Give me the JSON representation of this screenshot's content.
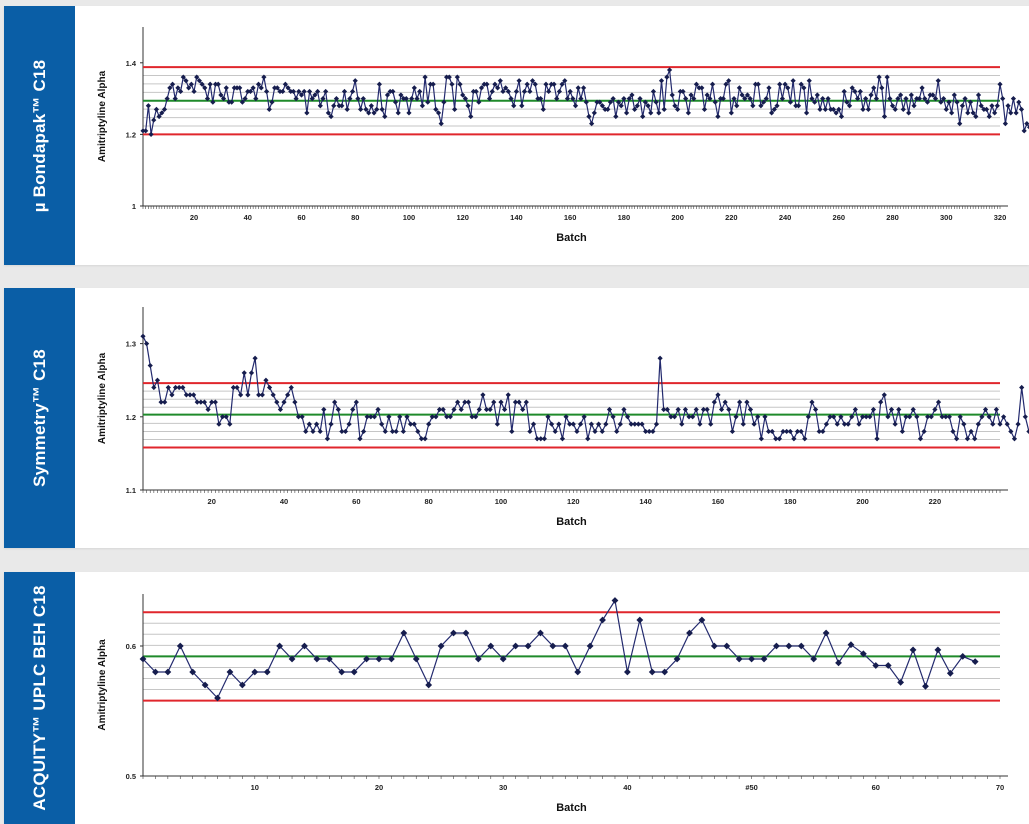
{
  "colors": {
    "side_panel": "#0a5ea6",
    "series_line": "#232a6e",
    "marker": "#161d4e",
    "control_limit": "#e0262c",
    "center_line": "#1f8a2a",
    "grid": "#c6c6c6"
  },
  "chart_data": [
    {
      "type": "line",
      "panel_label": "µ Bondapak™ C18",
      "xlabel": "Batch",
      "ylabel": "Amitriptyline Alpha",
      "xlim": [
        1,
        320
      ],
      "ylim": [
        1,
        1.5
      ],
      "y_ticks": [
        1,
        1.2,
        1.4
      ],
      "x_tick_labels": [
        "20",
        "40",
        "60",
        "80",
        "100",
        "120",
        "140",
        "160",
        "180",
        "200",
        "220",
        "240",
        "260",
        "280",
        "300",
        "320"
      ],
      "center_line": 1.294,
      "control_limits": [
        1.2,
        1.388
      ],
      "grid": true,
      "markers": "diamond",
      "series": [
        {
          "values": [
            1.21,
            1.21,
            1.28,
            1.2,
            1.24,
            1.27,
            1.25,
            1.26,
            1.27,
            1.3,
            1.33,
            1.34,
            1.3,
            1.33,
            1.32,
            1.36,
            1.35,
            1.33,
            1.34,
            1.32,
            1.36,
            1.35,
            1.34,
            1.33,
            1.3,
            1.34,
            1.29,
            1.34,
            1.34,
            1.31,
            1.3,
            1.33,
            1.29,
            1.29,
            1.33,
            1.33,
            1.33,
            1.29,
            1.3,
            1.32,
            1.32,
            1.33,
            1.3,
            1.34,
            1.33,
            1.36,
            1.32,
            1.27,
            1.29,
            1.33,
            1.33,
            1.32,
            1.32,
            1.34,
            1.33,
            1.32,
            1.32,
            1.3,
            1.32,
            1.31,
            1.32,
            1.26,
            1.32,
            1.3,
            1.31,
            1.32,
            1.28,
            1.3,
            1.32,
            1.26,
            1.25,
            1.28,
            1.3,
            1.28,
            1.28,
            1.32,
            1.27,
            1.3,
            1.32,
            1.35,
            1.3,
            1.27,
            1.3,
            1.27,
            1.26,
            1.28,
            1.26,
            1.27,
            1.34,
            1.27,
            1.25,
            1.31,
            1.32,
            1.32,
            1.29,
            1.26,
            1.31,
            1.3,
            1.3,
            1.26,
            1.3,
            1.33,
            1.3,
            1.32,
            1.28,
            1.36,
            1.29,
            1.34,
            1.34,
            1.27,
            1.26,
            1.23,
            1.29,
            1.36,
            1.36,
            1.34,
            1.27,
            1.36,
            1.34,
            1.31,
            1.3,
            1.28,
            1.25,
            1.32,
            1.32,
            1.29,
            1.33,
            1.34,
            1.34,
            1.3,
            1.32,
            1.34,
            1.33,
            1.35,
            1.32,
            1.33,
            1.32,
            1.3,
            1.28,
            1.32,
            1.35,
            1.28,
            1.32,
            1.34,
            1.32,
            1.35,
            1.34,
            1.3,
            1.3,
            1.27,
            1.34,
            1.32,
            1.34,
            1.34,
            1.3,
            1.32,
            1.34,
            1.35,
            1.3,
            1.32,
            1.3,
            1.28,
            1.33,
            1.3,
            1.33,
            1.29,
            1.25,
            1.23,
            1.26,
            1.29,
            1.29,
            1.28,
            1.27,
            1.27,
            1.29,
            1.3,
            1.25,
            1.29,
            1.28,
            1.3,
            1.26,
            1.3,
            1.31,
            1.27,
            1.28,
            1.3,
            1.25,
            1.29,
            1.28,
            1.26,
            1.32,
            1.29,
            1.26,
            1.35,
            1.27,
            1.36,
            1.38,
            1.31,
            1.28,
            1.27,
            1.32,
            1.32,
            1.3,
            1.26,
            1.31,
            1.3,
            1.34,
            1.33,
            1.33,
            1.27,
            1.31,
            1.3,
            1.34,
            1.29,
            1.25,
            1.3,
            1.3,
            1.34,
            1.35,
            1.26,
            1.3,
            1.28,
            1.33,
            1.31,
            1.3,
            1.31,
            1.3,
            1.28,
            1.34,
            1.34,
            1.28,
            1.29,
            1.3,
            1.33,
            1.26,
            1.27,
            1.28,
            1.34,
            1.3,
            1.34,
            1.33,
            1.29,
            1.35,
            1.28,
            1.28,
            1.34,
            1.33,
            1.26,
            1.35,
            1.3,
            1.29,
            1.31,
            1.27,
            1.3,
            1.27,
            1.3,
            1.27,
            1.27,
            1.26,
            1.27,
            1.25,
            1.32,
            1.29,
            1.28,
            1.33,
            1.32,
            1.3,
            1.32,
            1.27,
            1.3,
            1.27,
            1.31,
            1.33,
            1.3,
            1.36,
            1.33,
            1.25,
            1.36,
            1.3,
            1.28,
            1.27,
            1.3,
            1.31,
            1.27,
            1.3,
            1.26,
            1.31,
            1.28,
            1.3,
            1.3,
            1.33,
            1.3,
            1.29,
            1.31,
            1.31,
            1.3,
            1.35,
            1.29,
            1.3,
            1.27,
            1.29,
            1.26,
            1.31,
            1.29,
            1.23,
            1.28,
            1.3,
            1.26,
            1.29,
            1.26,
            1.25,
            1.31,
            1.28,
            1.27,
            1.27,
            1.25,
            1.28,
            1.26,
            1.28,
            1.34,
            1.3,
            1.23,
            1.28,
            1.26,
            1.3,
            1.26,
            1.29,
            1.27,
            1.21,
            1.23,
            1.22,
            1.2,
            1.2,
            1.22,
            1.23,
            1.22
          ]
        }
      ]
    },
    {
      "type": "line",
      "panel_label": "Symmetry™ C18",
      "xlabel": "Batch",
      "ylabel": "Amitriptyline Alpha",
      "xlim": [
        1,
        238
      ],
      "ylim": [
        1.1,
        1.35
      ],
      "y_ticks": [
        1.1,
        1.2,
        1.3
      ],
      "x_tick_labels": [
        "20",
        "40",
        "60",
        "80",
        "100",
        "120",
        "140",
        "160",
        "180",
        "200",
        "220"
      ],
      "center_line": 1.203,
      "control_limits": [
        1.158,
        1.246
      ],
      "grid": true,
      "markers": "diamond",
      "series": [
        {
          "values": [
            1.31,
            1.3,
            1.27,
            1.24,
            1.25,
            1.22,
            1.22,
            1.24,
            1.23,
            1.24,
            1.24,
            1.24,
            1.23,
            1.23,
            1.23,
            1.22,
            1.22,
            1.22,
            1.21,
            1.22,
            1.22,
            1.19,
            1.2,
            1.2,
            1.19,
            1.24,
            1.24,
            1.23,
            1.26,
            1.23,
            1.26,
            1.28,
            1.23,
            1.23,
            1.25,
            1.24,
            1.23,
            1.22,
            1.21,
            1.22,
            1.23,
            1.24,
            1.22,
            1.2,
            1.2,
            1.18,
            1.19,
            1.18,
            1.19,
            1.18,
            1.21,
            1.17,
            1.19,
            1.22,
            1.21,
            1.18,
            1.18,
            1.19,
            1.21,
            1.22,
            1.17,
            1.18,
            1.2,
            1.2,
            1.2,
            1.21,
            1.19,
            1.18,
            1.2,
            1.18,
            1.18,
            1.2,
            1.18,
            1.2,
            1.19,
            1.19,
            1.18,
            1.17,
            1.17,
            1.19,
            1.2,
            1.2,
            1.21,
            1.21,
            1.2,
            1.2,
            1.21,
            1.22,
            1.21,
            1.22,
            1.22,
            1.2,
            1.2,
            1.21,
            1.23,
            1.21,
            1.21,
            1.22,
            1.19,
            1.22,
            1.21,
            1.23,
            1.18,
            1.22,
            1.22,
            1.21,
            1.22,
            1.18,
            1.19,
            1.17,
            1.17,
            1.17,
            1.2,
            1.19,
            1.18,
            1.19,
            1.17,
            1.2,
            1.19,
            1.19,
            1.18,
            1.19,
            1.2,
            1.17,
            1.19,
            1.18,
            1.19,
            1.18,
            1.19,
            1.21,
            1.2,
            1.18,
            1.19,
            1.21,
            1.2,
            1.19,
            1.19,
            1.19,
            1.19,
            1.18,
            1.18,
            1.18,
            1.19,
            1.28,
            1.21,
            1.21,
            1.2,
            1.2,
            1.21,
            1.19,
            1.21,
            1.2,
            1.2,
            1.21,
            1.19,
            1.21,
            1.21,
            1.19,
            1.22,
            1.23,
            1.21,
            1.22,
            1.21,
            1.18,
            1.2,
            1.22,
            1.19,
            1.22,
            1.21,
            1.19,
            1.2,
            1.17,
            1.2,
            1.18,
            1.18,
            1.17,
            1.17,
            1.18,
            1.18,
            1.18,
            1.17,
            1.18,
            1.18,
            1.17,
            1.2,
            1.22,
            1.21,
            1.18,
            1.18,
            1.19,
            1.2,
            1.2,
            1.19,
            1.2,
            1.19,
            1.19,
            1.2,
            1.21,
            1.19,
            1.2,
            1.2,
            1.2,
            1.21,
            1.17,
            1.22,
            1.23,
            1.2,
            1.21,
            1.19,
            1.21,
            1.18,
            1.2,
            1.2,
            1.21,
            1.2,
            1.17,
            1.18,
            1.2,
            1.2,
            1.21,
            1.22,
            1.2,
            1.2,
            1.2,
            1.18,
            1.17,
            1.2,
            1.19,
            1.17,
            1.18,
            1.17,
            1.19,
            1.2,
            1.21,
            1.2,
            1.19,
            1.21,
            1.19,
            1.2,
            1.19,
            1.18,
            1.17,
            1.19,
            1.24,
            1.2,
            1.18,
            1.17,
            1.18,
            1.19,
            1.2,
            1.21
          ]
        }
      ]
    },
    {
      "type": "line",
      "panel_label": "ACQUITY™ UPLC BEH C18",
      "xlabel": "Batch",
      "ylabel": "Amitriptyline Alpha",
      "xlim": [
        1,
        70
      ],
      "ylim": [
        0.5,
        0.64
      ],
      "y_ticks": [
        0.5,
        0.6
      ],
      "x_tick_labels": [
        "10",
        "20",
        "30",
        "40",
        "#50",
        "60",
        "70"
      ],
      "center_line": 0.592,
      "control_limits": [
        0.558,
        0.626
      ],
      "grid": true,
      "markers": "diamond",
      "series": [
        {
          "values": [
            0.59,
            0.58,
            0.58,
            0.6,
            0.58,
            0.57,
            0.56,
            0.58,
            0.57,
            0.58,
            0.58,
            0.6,
            0.59,
            0.6,
            0.59,
            0.59,
            0.58,
            0.58,
            0.59,
            0.59,
            0.59,
            0.61,
            0.59,
            0.57,
            0.6,
            0.61,
            0.61,
            0.59,
            0.6,
            0.59,
            0.6,
            0.6,
            0.61,
            0.6,
            0.6,
            0.58,
            0.6,
            0.62,
            0.635,
            0.58,
            0.62,
            0.58,
            0.58,
            0.59,
            0.61,
            0.62,
            0.6,
            0.6,
            0.59,
            0.59,
            0.59,
            0.6,
            0.6,
            0.6,
            0.59,
            0.61,
            0.587,
            0.601,
            0.594,
            0.585,
            0.585,
            0.572,
            0.597,
            0.569,
            0.597,
            0.579,
            0.592,
            0.588
          ]
        }
      ]
    }
  ]
}
